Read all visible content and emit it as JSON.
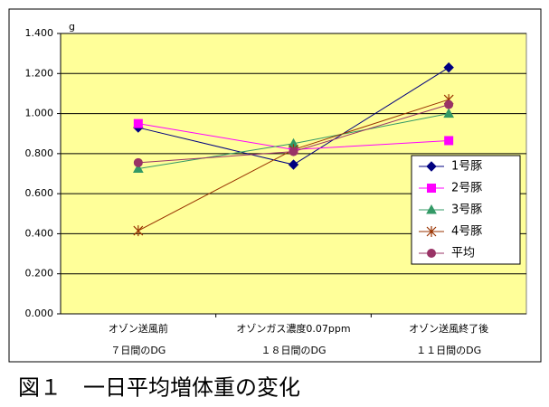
{
  "chart_data": {
    "type": "line",
    "unit": "g",
    "caption": "図１　一日平均増体重の変化",
    "categories": [
      [
        "オゾン送風前",
        "７日間のDG"
      ],
      [
        "オゾンガス濃度0.07ppm",
        "１８日間のDG"
      ],
      [
        "オゾン送風終了後",
        "１１日間のDG"
      ]
    ],
    "series": [
      {
        "name": "1号豚",
        "color": "#000080",
        "marker": "diamond",
        "values": [
          0.93,
          0.745,
          1.23
        ]
      },
      {
        "name": "2号豚",
        "color": "#ff00ff",
        "marker": "square",
        "values": [
          0.95,
          0.82,
          0.865
        ]
      },
      {
        "name": "3号豚",
        "color": "#339966",
        "marker": "triangle",
        "values": [
          0.725,
          0.85,
          1.0
        ]
      },
      {
        "name": "4号豚",
        "color": "#993300",
        "marker": "star",
        "values": [
          0.415,
          0.82,
          1.07
        ]
      },
      {
        "name": "平均",
        "color": "#993366",
        "marker": "circle",
        "values": [
          0.755,
          0.81,
          1.045
        ]
      }
    ],
    "ylim": [
      0,
      1.4
    ],
    "yticks": [
      {
        "value": 0,
        "label": "0.000"
      },
      {
        "value": 0.2,
        "label": "0.200"
      },
      {
        "value": 0.4,
        "label": "0.400"
      },
      {
        "value": 0.6,
        "label": "0.600"
      },
      {
        "value": 0.8,
        "label": "0.800"
      },
      {
        "value": 1.0,
        "label": "1.000"
      },
      {
        "value": 1.2,
        "label": "1.200"
      },
      {
        "value": 1.4,
        "label": "1.400"
      }
    ],
    "grid": true,
    "plot_background": "#ffff99"
  }
}
